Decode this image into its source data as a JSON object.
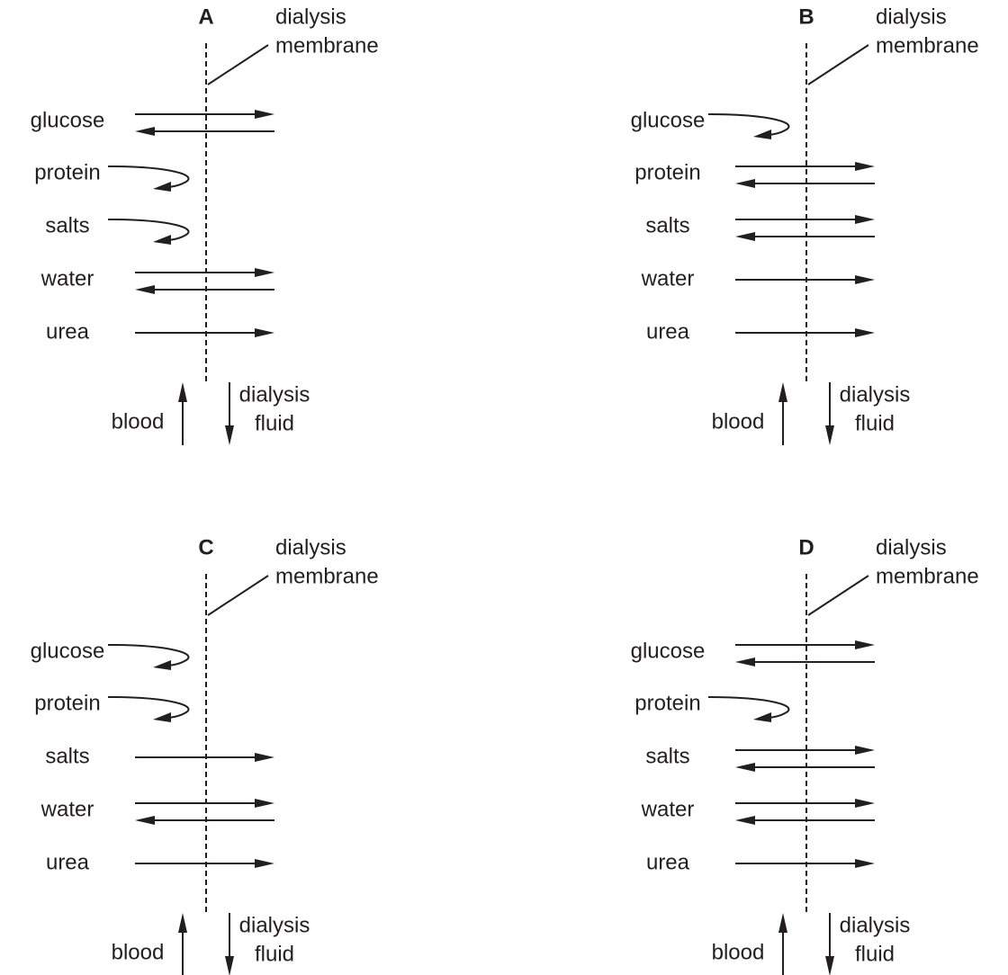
{
  "panels": [
    {
      "title": "A",
      "membrane_label": [
        "dialysis",
        "membrane"
      ],
      "substances": [
        "glucose",
        "protein",
        "salts",
        "water",
        "urea"
      ],
      "blood_label": "blood",
      "fluid_label": [
        "dialysis",
        "fluid"
      ]
    },
    {
      "title": "B",
      "membrane_label": [
        "dialysis",
        "membrane"
      ],
      "substances": [
        "glucose",
        "protein",
        "salts",
        "water",
        "urea"
      ],
      "blood_label": "blood",
      "fluid_label": [
        "dialysis",
        "fluid"
      ]
    },
    {
      "title": "C",
      "membrane_label": [
        "dialysis",
        "membrane"
      ],
      "substances": [
        "glucose",
        "protein",
        "salts",
        "water",
        "urea"
      ],
      "blood_label": "blood",
      "fluid_label": [
        "dialysis",
        "fluid"
      ]
    },
    {
      "title": "D",
      "membrane_label": [
        "dialysis",
        "membrane"
      ],
      "substances": [
        "glucose",
        "protein",
        "salts",
        "water",
        "urea"
      ],
      "blood_label": "blood",
      "fluid_label": [
        "dialysis",
        "fluid"
      ]
    }
  ]
}
